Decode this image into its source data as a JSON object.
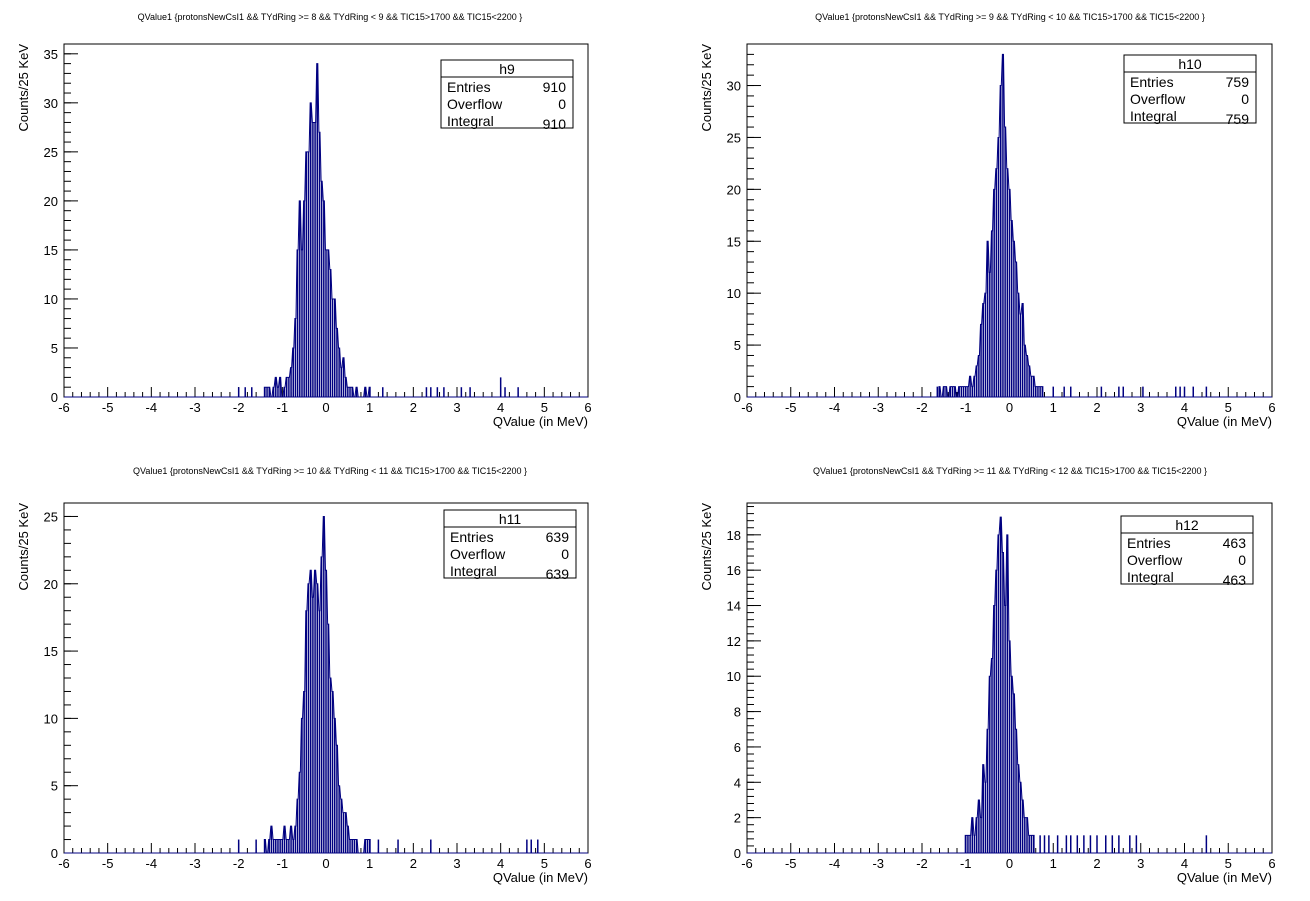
{
  "chart_data": [
    {
      "type": "bar",
      "title": "QValue1 {protonsNewCsI1 && TYdRing >= 8  && TYdRing < 9 && TIC15>1700 && TIC15<2200 }",
      "xlabel": "QValue (in MeV)",
      "ylabel": "Counts/25 KeV",
      "xlim": [
        -6,
        6
      ],
      "ylim": [
        0,
        36
      ],
      "x_ticks": [
        -6,
        -5,
        -4,
        -3,
        -2,
        -1,
        0,
        1,
        2,
        3,
        4,
        5,
        6
      ],
      "y_ticks": [
        0,
        5,
        10,
        15,
        20,
        25,
        30,
        35
      ],
      "legend": "top-right",
      "stats": {
        "name": "h9",
        "rows": [
          {
            "label": "Entries",
            "value": "910"
          },
          {
            "label": "Overflow",
            "value": "0"
          },
          {
            "label": "Integral",
            "value": "910"
          }
        ]
      },
      "bin_width": 0.025,
      "x": [
        -1.4,
        -1.35,
        -1.3,
        -1.25,
        -1.2,
        -1.15,
        -1.1,
        -1.05,
        -1.0,
        -0.95,
        -0.9,
        -0.85,
        -0.8,
        -0.75,
        -0.7,
        -0.65,
        -0.6,
        -0.55,
        -0.5,
        -0.45,
        -0.4,
        -0.35,
        -0.3,
        -0.25,
        -0.2,
        -0.15,
        -0.1,
        -0.05,
        0.0,
        0.05,
        0.1,
        0.15,
        0.2,
        0.25,
        0.3,
        0.35,
        0.4,
        0.45,
        0.5,
        0.55,
        0.6,
        0.65,
        0.7,
        0.75,
        0.8,
        0.85,
        0.9,
        0.95,
        1.0
      ],
      "values": [
        1,
        1,
        1,
        0,
        1,
        2,
        1,
        2,
        0,
        1,
        2,
        2,
        3,
        5,
        8,
        15,
        20,
        15,
        20,
        25,
        25,
        30,
        28,
        28,
        34,
        27,
        22,
        20,
        15,
        15,
        13,
        10,
        10,
        7,
        5,
        3,
        4,
        2,
        1,
        1,
        1,
        0,
        1,
        0,
        0,
        0,
        1,
        0,
        1
      ],
      "outliers": [
        {
          "x": -2.0,
          "y": 1
        },
        {
          "x": -1.85,
          "y": 1
        },
        {
          "x": -1.7,
          "y": 1
        },
        {
          "x": 1.3,
          "y": 1
        },
        {
          "x": 2.3,
          "y": 1
        },
        {
          "x": 2.4,
          "y": 1
        },
        {
          "x": 2.55,
          "y": 1
        },
        {
          "x": 2.7,
          "y": 1
        },
        {
          "x": 3.1,
          "y": 1
        },
        {
          "x": 3.3,
          "y": 1
        },
        {
          "x": 4.0,
          "y": 2
        },
        {
          "x": 4.1,
          "y": 1
        },
        {
          "x": 4.4,
          "y": 1
        }
      ]
    },
    {
      "type": "bar",
      "title": "QValue1 {protonsNewCsI1 && TYdRing >= 9  && TYdRing < 10 && TIC15>1700 && TIC15<2200 }",
      "xlabel": "QValue (in MeV)",
      "ylabel": "Counts/25 KeV",
      "xlim": [
        -6,
        6
      ],
      "ylim": [
        0,
        34
      ],
      "x_ticks": [
        -6,
        -5,
        -4,
        -3,
        -2,
        -1,
        0,
        1,
        2,
        3,
        4,
        5,
        6
      ],
      "y_ticks": [
        0,
        5,
        10,
        15,
        20,
        25,
        30
      ],
      "legend": "top-right",
      "stats": {
        "name": "h10",
        "rows": [
          {
            "label": "Entries",
            "value": "759"
          },
          {
            "label": "Overflow",
            "value": "0"
          },
          {
            "label": "Integral",
            "value": "759"
          }
        ]
      },
      "bin_width": 0.025,
      "x": [
        -1.6,
        -1.55,
        -1.5,
        -1.45,
        -1.4,
        -1.35,
        -1.3,
        -1.25,
        -1.2,
        -1.15,
        -1.1,
        -1.05,
        -1.0,
        -0.95,
        -0.9,
        -0.85,
        -0.8,
        -0.75,
        -0.7,
        -0.65,
        -0.6,
        -0.55,
        -0.5,
        -0.45,
        -0.4,
        -0.35,
        -0.3,
        -0.25,
        -0.2,
        -0.15,
        -0.1,
        -0.05,
        0.0,
        0.05,
        0.1,
        0.15,
        0.2,
        0.25,
        0.3,
        0.35,
        0.4,
        0.45,
        0.5,
        0.55,
        0.6,
        0.65,
        0.7,
        0.75
      ],
      "values": [
        1,
        0,
        1,
        1,
        0,
        1,
        1,
        1,
        0,
        1,
        1,
        1,
        1,
        1,
        2,
        1,
        2,
        3,
        4,
        7,
        9,
        10,
        15,
        12,
        16,
        20,
        22,
        25,
        30,
        33,
        26,
        22,
        20,
        17,
        15,
        13,
        10,
        8,
        9,
        5,
        4,
        3,
        2,
        2,
        1,
        1,
        1,
        1
      ],
      "outliers": [
        {
          "x": -1.65,
          "y": 1
        },
        {
          "x": 1.0,
          "y": 1
        },
        {
          "x": 1.25,
          "y": 1
        },
        {
          "x": 1.4,
          "y": 1
        },
        {
          "x": 2.1,
          "y": 1
        },
        {
          "x": 2.5,
          "y": 1
        },
        {
          "x": 2.6,
          "y": 1
        },
        {
          "x": 3.05,
          "y": 1
        },
        {
          "x": 3.8,
          "y": 1
        },
        {
          "x": 3.9,
          "y": 1
        },
        {
          "x": 4.0,
          "y": 1
        },
        {
          "x": 4.2,
          "y": 1
        },
        {
          "x": 4.5,
          "y": 1
        }
      ]
    },
    {
      "type": "bar",
      "title": "QValue1 {protonsNewCsI1 && TYdRing >= 10  && TYdRing < 11 && TIC15>1700 && TIC15<2200 }",
      "xlabel": "QValue (in MeV)",
      "ylabel": "Counts/25 KeV",
      "xlim": [
        -6,
        6
      ],
      "ylim": [
        0,
        26
      ],
      "x_ticks": [
        -6,
        -5,
        -4,
        -3,
        -2,
        -1,
        0,
        1,
        2,
        3,
        4,
        5,
        6
      ],
      "y_ticks": [
        0,
        5,
        10,
        15,
        20,
        25
      ],
      "legend": "top-right",
      "stats": {
        "name": "h11",
        "rows": [
          {
            "label": "Entries",
            "value": "639"
          },
          {
            "label": "Overflow",
            "value": "0"
          },
          {
            "label": "Integral",
            "value": "639"
          }
        ]
      },
      "bin_width": 0.025,
      "x": [
        -1.4,
        -1.35,
        -1.3,
        -1.25,
        -1.2,
        -1.15,
        -1.1,
        -1.05,
        -1.0,
        -0.95,
        -0.9,
        -0.85,
        -0.8,
        -0.75,
        -0.7,
        -0.65,
        -0.6,
        -0.55,
        -0.5,
        -0.45,
        -0.4,
        -0.35,
        -0.3,
        -0.25,
        -0.2,
        -0.15,
        -0.1,
        -0.05,
        0.0,
        0.05,
        0.1,
        0.15,
        0.2,
        0.25,
        0.3,
        0.35,
        0.4,
        0.45,
        0.5,
        0.55,
        0.6,
        0.65,
        0.7,
        0.75,
        0.8,
        0.85,
        0.9,
        0.95,
        1.0
      ],
      "values": [
        1,
        0,
        1,
        2,
        1,
        1,
        1,
        1,
        1,
        2,
        1,
        1,
        2,
        1,
        2,
        4,
        6,
        10,
        12,
        18,
        20,
        21,
        19,
        21,
        20,
        18,
        22,
        25,
        21,
        17,
        13,
        12,
        10,
        8,
        5,
        4,
        3,
        3,
        2,
        1,
        1,
        1,
        1,
        0,
        0,
        0,
        1,
        1,
        1
      ],
      "outliers": [
        {
          "x": -2.0,
          "y": 1
        },
        {
          "x": -1.6,
          "y": 1
        },
        {
          "x": 1.2,
          "y": 1
        },
        {
          "x": 1.65,
          "y": 1
        },
        {
          "x": 2.4,
          "y": 1
        },
        {
          "x": 4.6,
          "y": 1
        },
        {
          "x": 4.7,
          "y": 1
        },
        {
          "x": 4.85,
          "y": 1
        }
      ]
    },
    {
      "type": "bar",
      "title": "QValue1 {protonsNewCsI1 && TYdRing >= 11  && TYdRing < 12 && TIC15>1700 && TIC15<2200 }",
      "xlabel": "QValue (in MeV)",
      "ylabel": "Counts/25 KeV",
      "xlim": [
        -6,
        6
      ],
      "ylim": [
        0,
        19.8
      ],
      "x_ticks": [
        -6,
        -5,
        -4,
        -3,
        -2,
        -1,
        0,
        1,
        2,
        3,
        4,
        5,
        6
      ],
      "y_ticks": [
        0,
        2,
        4,
        6,
        8,
        10,
        12,
        14,
        16,
        18
      ],
      "legend": "top-right",
      "stats": {
        "name": "h12",
        "rows": [
          {
            "label": "Entries",
            "value": "463"
          },
          {
            "label": "Overflow",
            "value": "0"
          },
          {
            "label": "Integral",
            "value": "463"
          }
        ]
      },
      "bin_width": 0.025,
      "x": [
        -1.0,
        -0.95,
        -0.9,
        -0.85,
        -0.8,
        -0.75,
        -0.7,
        -0.65,
        -0.6,
        -0.55,
        -0.5,
        -0.45,
        -0.4,
        -0.35,
        -0.3,
        -0.25,
        -0.2,
        -0.15,
        -0.1,
        -0.05,
        0.0,
        0.05,
        0.1,
        0.15,
        0.2,
        0.25,
        0.3,
        0.35,
        0.4,
        0.45,
        0.5,
        0.55
      ],
      "values": [
        1,
        1,
        1,
        2,
        1,
        2,
        3,
        2,
        5,
        4,
        7,
        10,
        11,
        14,
        16,
        18,
        19,
        17,
        14,
        18,
        12,
        10,
        9,
        7,
        5,
        4,
        3,
        2,
        2,
        1,
        1,
        1
      ],
      "outliers": [
        {
          "x": 0.7,
          "y": 1
        },
        {
          "x": 0.8,
          "y": 1
        },
        {
          "x": 0.9,
          "y": 1
        },
        {
          "x": 1.1,
          "y": 1
        },
        {
          "x": 1.3,
          "y": 1
        },
        {
          "x": 1.4,
          "y": 1
        },
        {
          "x": 1.55,
          "y": 1
        },
        {
          "x": 1.7,
          "y": 1
        },
        {
          "x": 1.85,
          "y": 1
        },
        {
          "x": 2.0,
          "y": 1
        },
        {
          "x": 2.2,
          "y": 1
        },
        {
          "x": 2.35,
          "y": 1
        },
        {
          "x": 2.5,
          "y": 1
        },
        {
          "x": 2.75,
          "y": 1
        },
        {
          "x": 2.9,
          "y": 1
        },
        {
          "x": 4.5,
          "y": 1
        }
      ]
    }
  ]
}
